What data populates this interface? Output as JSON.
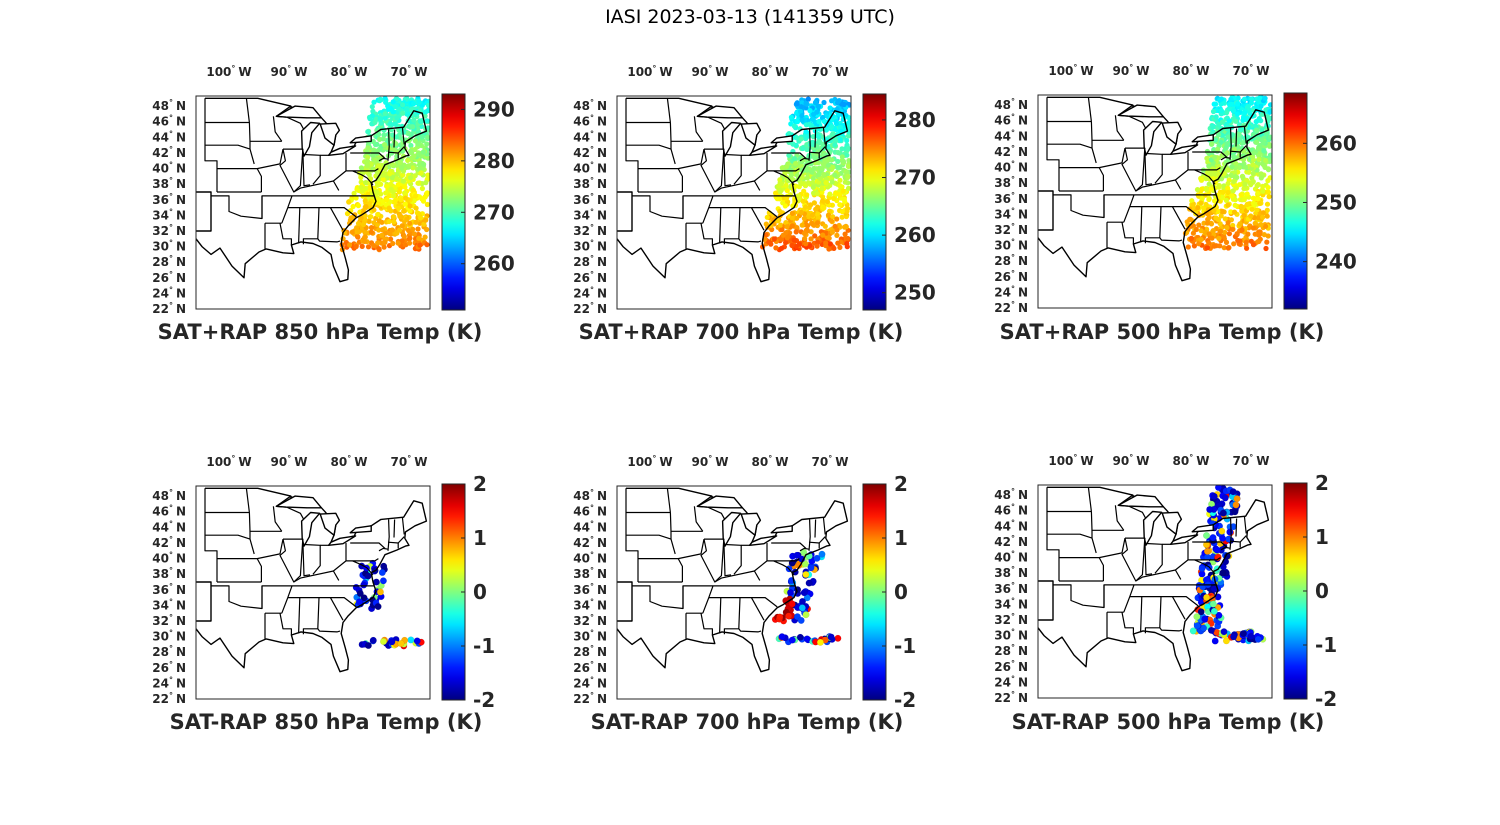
{
  "figure_title": "IASI 2023-03-13 (141359 UTC)",
  "lon_ticks": [
    {
      "deg": "100",
      "dir": "W"
    },
    {
      "deg": "90",
      "dir": "W"
    },
    {
      "deg": "80",
      "dir": "W"
    },
    {
      "deg": "70",
      "dir": "W"
    }
  ],
  "lat_ticks": [
    {
      "deg": "48",
      "dir": "N"
    },
    {
      "deg": "46",
      "dir": "N"
    },
    {
      "deg": "44",
      "dir": "N"
    },
    {
      "deg": "42",
      "dir": "N"
    },
    {
      "deg": "40",
      "dir": "N"
    },
    {
      "deg": "38",
      "dir": "N"
    },
    {
      "deg": "36",
      "dir": "N"
    },
    {
      "deg": "34",
      "dir": "N"
    },
    {
      "deg": "32",
      "dir": "N"
    },
    {
      "deg": "30",
      "dir": "N"
    },
    {
      "deg": "28",
      "dir": "N"
    },
    {
      "deg": "26",
      "dir": "N"
    },
    {
      "deg": "24",
      "dir": "N"
    },
    {
      "deg": "22",
      "dir": "N"
    }
  ],
  "panels": [
    {
      "title": "SAT+RAP 850 hPa Temp (K)",
      "kind": "field",
      "clim": [
        251,
        293
      ],
      "cticks": [
        "290",
        "280",
        "270",
        "260"
      ],
      "ctick_values": [
        290,
        280,
        270,
        260
      ],
      "mean_north": 267,
      "mean_south": 283
    },
    {
      "title": "SAT+RAP 700 hPa Temp (K)",
      "kind": "field",
      "clim": [
        247,
        284.5
      ],
      "cticks": [
        "280",
        "270",
        "260",
        "250"
      ],
      "ctick_values": [
        280,
        270,
        260,
        250
      ],
      "mean_north": 258,
      "mean_south": 277
    },
    {
      "title": "SAT+RAP 500 hPa Temp (K)",
      "kind": "field",
      "clim": [
        232,
        268.5
      ],
      "cticks": [
        "260",
        "250",
        "240"
      ],
      "ctick_values": [
        260,
        250,
        240
      ],
      "mean_north": 245,
      "mean_south": 260
    },
    {
      "title": "SAT-RAP 850 hPa Temp (K)",
      "kind": "diff",
      "clim": [
        -2,
        2
      ],
      "cticks": [
        "2",
        "1",
        "0",
        "-1",
        "-2"
      ],
      "ctick_values": [
        2,
        1,
        0,
        -1,
        -2
      ],
      "spread": "coast-south"
    },
    {
      "title": "SAT-RAP 700 hPa Temp (K)",
      "kind": "diff",
      "clim": [
        -2,
        2
      ],
      "cticks": [
        "2",
        "1",
        "0",
        "-1",
        "-2"
      ],
      "ctick_values": [
        2,
        1,
        0,
        -1,
        -2
      ],
      "spread": "coast-mid"
    },
    {
      "title": "SAT-RAP 500 hPa Temp (K)",
      "kind": "diff",
      "clim": [
        -2,
        2
      ],
      "cticks": [
        "2",
        "1",
        "0",
        "-1",
        "-2"
      ],
      "ctick_values": [
        2,
        1,
        0,
        -1,
        -2
      ],
      "spread": "coast-full"
    }
  ],
  "colormap": "jet"
}
